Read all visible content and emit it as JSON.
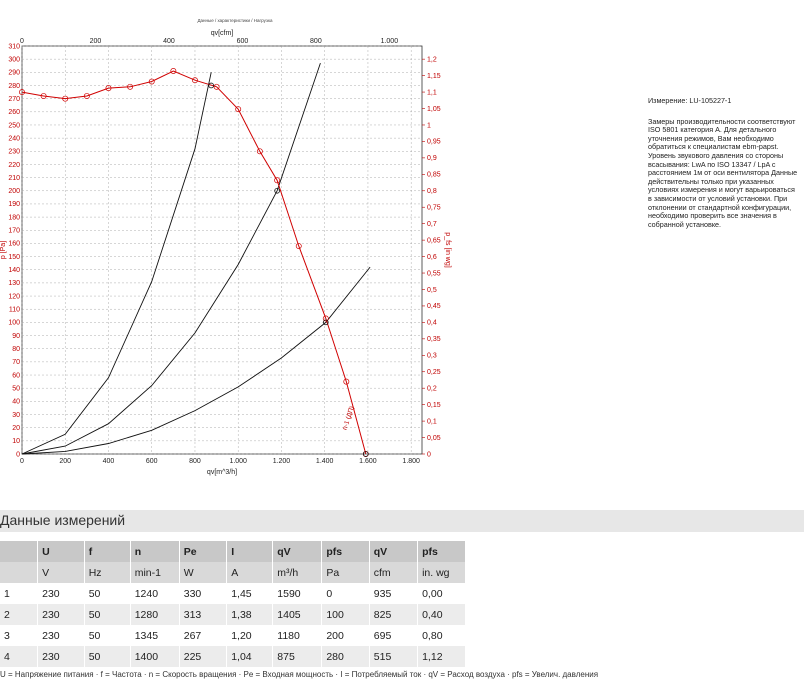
{
  "chart_data": {
    "type": "line",
    "title": "Данные / характеристики / Нагрузка",
    "top_axis_label": "qv[cfm]",
    "bottom_axis_label": "qv[m^3/h]",
    "left_axis_label": "p [Pa]",
    "right_axis_label": "p_fs [in wg]",
    "x_range": [
      0,
      1850
    ],
    "y_range": [
      0,
      310
    ],
    "x_ticks": [
      0,
      200,
      400,
      600,
      800,
      1000,
      1200,
      1400,
      1600,
      1800
    ],
    "x_tick_labels": [
      "0",
      "200",
      "400",
      "600",
      "800",
      "1.000",
      "1.200",
      "1.400",
      "1.600",
      "1.800"
    ],
    "y_ticks": [
      0,
      10,
      20,
      30,
      40,
      50,
      60,
      70,
      80,
      90,
      100,
      110,
      120,
      130,
      140,
      150,
      160,
      170,
      180,
      190,
      200,
      210,
      220,
      230,
      240,
      250,
      260,
      270,
      280,
      290,
      300,
      310
    ],
    "top_ticks_cfm": [
      0,
      200,
      400,
      600,
      800,
      1000
    ],
    "top_tick_labels": [
      "0",
      "200",
      "400",
      "600",
      "800",
      "1.000"
    ],
    "right_ticks": [
      0,
      0.05,
      0.1,
      0.15,
      0.2,
      0.25,
      0.3,
      0.35,
      0.4,
      0.45,
      0.5,
      0.55,
      0.6,
      0.65,
      0.7,
      0.75,
      0.8,
      0.85,
      0.9,
      0.95,
      1,
      1.05,
      1.1,
      1.15,
      1.2
    ],
    "right_tick_labels": [
      "0",
      "0,05",
      "0,1",
      "0,15",
      "0,2",
      "0,25",
      "0,3",
      "0,35",
      "0,4",
      "0,45",
      "0,5",
      "0,55",
      "0,6",
      "0,65",
      "0,7",
      "0,75",
      "0,8",
      "0,85",
      "0,9",
      "0,95",
      "1",
      "1,05",
      "1,1",
      "1,15",
      "1,2"
    ],
    "fan_curve": {
      "label": "n-1 (ДП)",
      "color": "#d00000",
      "x": [
        0,
        100,
        200,
        300,
        400,
        500,
        600,
        700,
        800,
        900,
        1000,
        1100,
        1180,
        1280,
        1405,
        1500,
        1590
      ],
      "y": [
        275,
        272,
        270,
        272,
        278,
        279,
        283,
        291,
        284,
        279,
        262,
        230,
        208,
        158,
        103,
        55,
        0
      ]
    },
    "system_curves": [
      {
        "color": "#111111",
        "x": [
          0,
          200,
          400,
          600,
          800,
          875
        ],
        "y": [
          0,
          15,
          58,
          131,
          232,
          290
        ]
      },
      {
        "color": "#111111",
        "x": [
          0,
          200,
          400,
          600,
          800,
          1000,
          1180,
          1380
        ],
        "y": [
          0,
          6,
          23,
          52,
          92,
          144,
          200,
          297
        ]
      },
      {
        "color": "#111111",
        "x": [
          0,
          200,
          400,
          600,
          800,
          1000,
          1200,
          1405,
          1610
        ],
        "y": [
          0,
          2,
          8,
          18,
          33,
          51,
          73,
          100,
          142
        ]
      }
    ],
    "operating_points": [
      {
        "x": 875,
        "y": 280
      },
      {
        "x": 1180,
        "y": 200
      },
      {
        "x": 1405,
        "y": 100
      },
      {
        "x": 1590,
        "y": 0
      }
    ]
  },
  "side_note": {
    "measurement": "Измерение: LU-105227-1",
    "text": "Замеры производительности соответствуют ISO 5801 категория A. Для детального уточнения режимов, Вам необходимо обратиться к специалистам ebm-papst. Уровень звукового давления со стороны всасывания: LwA по ISO 13347 / LpA с расстоянием 1м от оси вентилятора Данные действительны только при указанных условиях измерения и могут варьироваться в зависимости от условий установки. При отклонении от стандартной конфигурации, необходимо проверить все значения в собранной установке."
  },
  "section_title": "Данные измерений",
  "table": {
    "headers": [
      "",
      "U",
      "f",
      "n",
      "Pe",
      "I",
      "qV",
      "pfs",
      "qV",
      "pfs"
    ],
    "units": [
      "",
      "V",
      "Hz",
      "min-1",
      "W",
      "A",
      "m³/h",
      "Pa",
      "cfm",
      "in. wg"
    ],
    "rows": [
      [
        "1",
        "230",
        "50",
        "1240",
        "330",
        "1,45",
        "1590",
        "0",
        "935",
        "0,00"
      ],
      [
        "2",
        "230",
        "50",
        "1280",
        "313",
        "1,38",
        "1405",
        "100",
        "825",
        "0,40"
      ],
      [
        "3",
        "230",
        "50",
        "1345",
        "267",
        "1,20",
        "1180",
        "200",
        "695",
        "0,80"
      ],
      [
        "4",
        "230",
        "50",
        "1400",
        "225",
        "1,04",
        "875",
        "280",
        "515",
        "1,12"
      ]
    ]
  },
  "legend_text": "U = Напряжение питания · f = Частота · n = Скорость вращения · Pe = Входная мощность · I = Потребляемый ток · qV = Расход воздуха · pfs = Увелич. давления"
}
